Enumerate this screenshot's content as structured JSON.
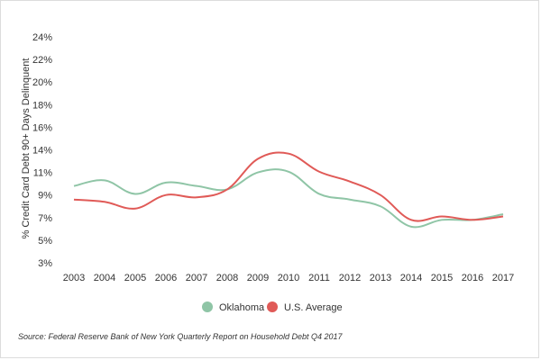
{
  "chart_data": {
    "type": "line",
    "ylabel": "% Credit Card Debt 90+ Days Delinquent",
    "y_ticks": [
      "3%",
      "5%",
      "7%",
      "9%",
      "11%",
      "14%",
      "16%",
      "18%",
      "20%",
      "22%",
      "24%"
    ],
    "ylim": [
      3,
      24
    ],
    "x": [
      "2003",
      "2004",
      "2005",
      "2006",
      "2007",
      "2008",
      "2009",
      "2010",
      "2011",
      "2012",
      "2013",
      "2014",
      "2015",
      "2016",
      "2017"
    ],
    "series": [
      {
        "name": "Oklahoma",
        "color": "#8fc5a6",
        "values": [
          9.8,
          10.3,
          9.1,
          10.1,
          9.8,
          9.5,
          11.0,
          11.1,
          9.1,
          8.6,
          8.0,
          6.2,
          6.8,
          6.8,
          7.3
        ]
      },
      {
        "name": "U.S. Average",
        "color": "#e05a57",
        "values": [
          8.6,
          8.4,
          7.8,
          9.0,
          8.8,
          9.5,
          12.8,
          13.5,
          11.1,
          10.2,
          9.0,
          6.8,
          7.1,
          6.8,
          7.1
        ]
      }
    ],
    "grid": false,
    "legend_position": "bottom-center"
  },
  "source_note": "Source: Federal Reserve Bank of New York Quarterly Report on Household Debt Q4 2017"
}
